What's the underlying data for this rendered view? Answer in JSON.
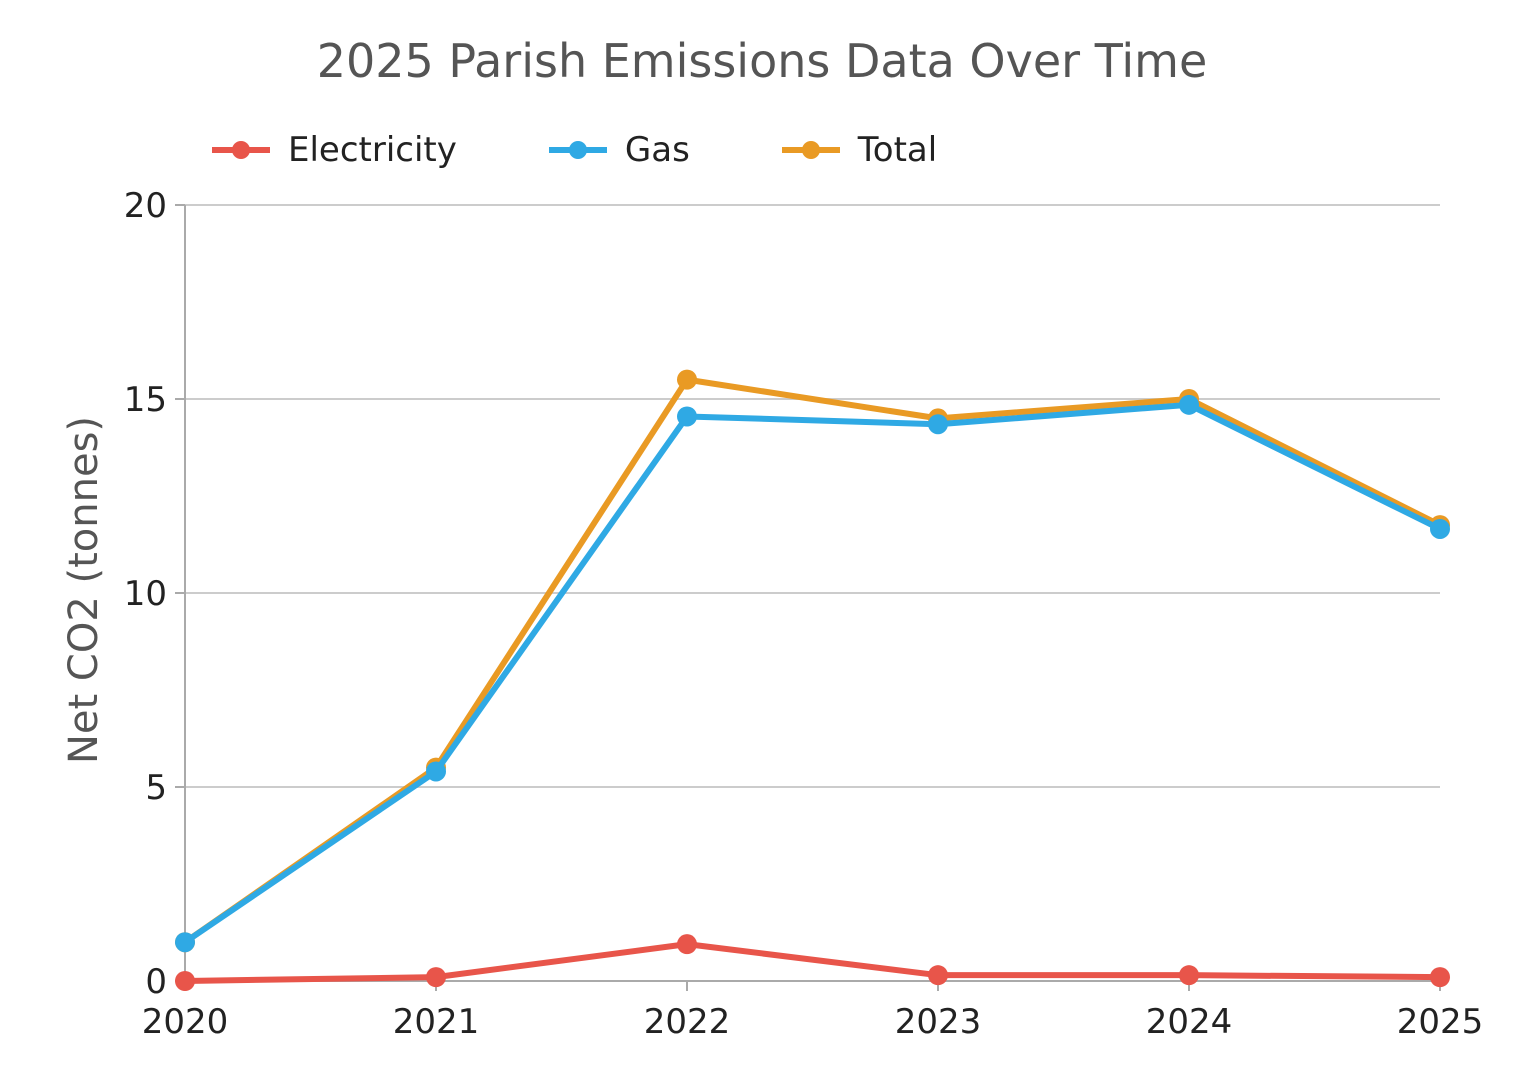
{
  "chart_data": {
    "type": "line",
    "title": "2025 Parish Emissions Data Over Time",
    "xlabel": "",
    "ylabel": "Net CO2 (tonnes)",
    "categories": [
      "2020",
      "2021",
      "2022",
      "2023",
      "2024",
      "2025"
    ],
    "ylim": [
      0,
      20
    ],
    "yticks": [
      "0",
      "5",
      "10",
      "15",
      "20"
    ],
    "grid": true,
    "legend_position": "top-left",
    "series": [
      {
        "name": "Electricity",
        "color": "#e8554a",
        "values": [
          0.0,
          0.1,
          0.95,
          0.15,
          0.15,
          0.1
        ]
      },
      {
        "name": "Gas",
        "color": "#2fa9e4",
        "values": [
          1.0,
          5.4,
          14.55,
          14.35,
          14.85,
          11.65
        ]
      },
      {
        "name": "Total",
        "color": "#e99a24",
        "values": [
          1.0,
          5.5,
          15.5,
          14.5,
          15.0,
          11.75
        ]
      }
    ]
  }
}
